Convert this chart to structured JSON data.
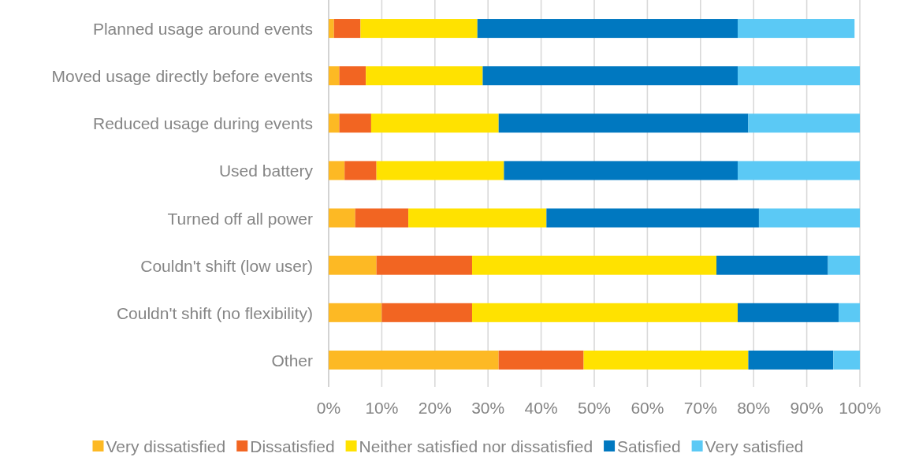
{
  "chart_data": {
    "type": "bar",
    "orientation": "horizontal",
    "stacked": true,
    "categories": [
      "Planned usage around events",
      "Moved usage directly before events",
      "Reduced usage during events",
      "Used battery",
      "Turned off all power",
      "Couldn't shift (low user)",
      "Couldn't shift (no flexibility)",
      "Other"
    ],
    "series": [
      {
        "name": "Very dissatisfied",
        "color": "#fdb924",
        "values": [
          1,
          2,
          2,
          3,
          5,
          9,
          10,
          32
        ]
      },
      {
        "name": "Dissatisfied",
        "color": "#f26522",
        "values": [
          5,
          5,
          6,
          6,
          10,
          18,
          17,
          16
        ]
      },
      {
        "name": "Neither satisfied nor dissatisfied",
        "color": "#ffe200",
        "values": [
          22,
          22,
          24,
          24,
          26,
          46,
          50,
          31
        ]
      },
      {
        "name": "Satisfied",
        "color": "#0078c0",
        "values": [
          49,
          48,
          47,
          44,
          40,
          21,
          19,
          16
        ]
      },
      {
        "name": "Very satisfied",
        "color": "#5bc9f5",
        "values": [
          22,
          23,
          21,
          23,
          19,
          6,
          4,
          5
        ]
      }
    ],
    "xlim": [
      0,
      100
    ],
    "xticks": [
      {
        "value": 0,
        "label": "0%"
      },
      {
        "value": 10,
        "label": "10%"
      },
      {
        "value": 20,
        "label": "20%"
      },
      {
        "value": 30,
        "label": "30%"
      },
      {
        "value": 40,
        "label": "40%"
      },
      {
        "value": 50,
        "label": "50%"
      },
      {
        "value": 60,
        "label": "60%"
      },
      {
        "value": 70,
        "label": "70%"
      },
      {
        "value": 80,
        "label": "80%"
      },
      {
        "value": 90,
        "label": "90%"
      },
      {
        "value": 100,
        "label": "100%"
      }
    ],
    "grid": "x",
    "legend": "bottom"
  }
}
